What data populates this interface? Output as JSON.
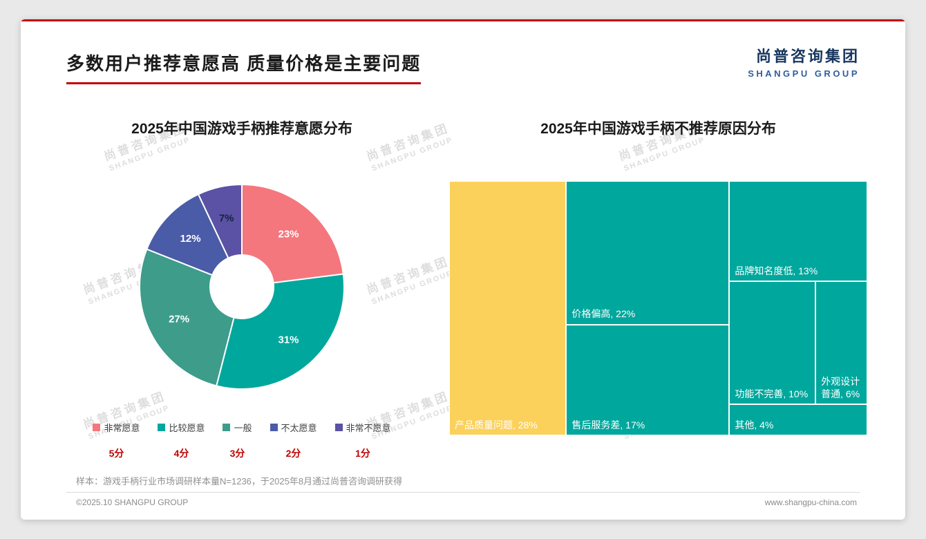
{
  "header": {
    "title": "多数用户推荐意愿高 质量价格是主要问题",
    "logo_cn": "尚普咨询集团",
    "logo_en": "SHANGPU GROUP"
  },
  "watermark": {
    "line1": "尚普咨询集团",
    "line2": "SHANGPU GROUP"
  },
  "accent_color": "#C00000",
  "chart_data": [
    {
      "type": "pie",
      "donut": true,
      "title": "2025年中国游戏手柄推荐意愿分布",
      "start_angle_deg": 0,
      "labels": [
        "非常愿意",
        "比较愿意",
        "一般",
        "不太愿意",
        "非常不愿意"
      ],
      "values": [
        23,
        31,
        27,
        12,
        7
      ],
      "colors": [
        "#F4777E",
        "#00A79D",
        "#3E9C8B",
        "#4A5CA8",
        "#5B52A5"
      ],
      "value_label_colors": [
        "#ffffff",
        "#ffffff",
        "#ffffff",
        "#ffffff",
        "#14233f"
      ],
      "scores": [
        "5分",
        "4分",
        "3分",
        "2分",
        "1分"
      ],
      "legend_position": "bottom"
    },
    {
      "type": "treemap",
      "title": "2025年中国游戏手柄不推荐原因分布",
      "label_format": "{label}, {value}%",
      "items": [
        {
          "label": "产品质量问题",
          "value": 28,
          "color": "#FBD15B",
          "text_color": "#ffffff"
        },
        {
          "label": "价格偏高",
          "value": 22,
          "color": "#00A79D",
          "text_color": "#ffffff"
        },
        {
          "label": "售后服务差",
          "value": 17,
          "color": "#00A79D",
          "text_color": "#ffffff"
        },
        {
          "label": "品牌知名度低",
          "value": 13,
          "color": "#00A79D",
          "text_color": "#ffffff"
        },
        {
          "label": "功能不完善",
          "value": 10,
          "color": "#00A79D",
          "text_color": "#ffffff"
        },
        {
          "label": "外观设计普通",
          "value": 6,
          "color": "#00A79D",
          "text_color": "#ffffff"
        },
        {
          "label": "其他",
          "value": 4,
          "color": "#00A79D",
          "text_color": "#ffffff"
        }
      ]
    }
  ],
  "footer": {
    "sample_note": "样本：游戏手柄行业市场调研样本量N=1236，于2025年8月通过尚普咨询调研获得",
    "copyright": "©2025.10 SHANGPU GROUP",
    "website": "www.shangpu-china.com"
  }
}
